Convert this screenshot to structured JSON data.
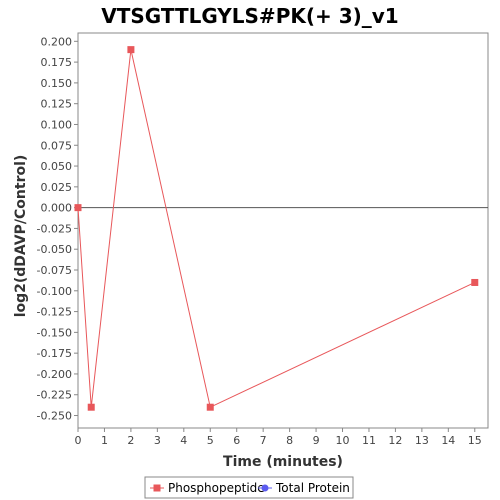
{
  "chart_data": {
    "type": "line",
    "title": "VTSGTTLGYLS#PK(+ 3)_v1",
    "xlabel": "Time (minutes)",
    "ylabel": "log2(dDAVP/Control)",
    "xlim": [
      0,
      15.5
    ],
    "ylim": [
      -0.265,
      0.21
    ],
    "xticks": [
      0,
      1,
      2,
      3,
      4,
      5,
      6,
      7,
      8,
      9,
      10,
      11,
      12,
      13,
      14,
      15
    ],
    "yticks": [
      0.2,
      0.175,
      0.15,
      0.125,
      0.1,
      0.075,
      0.05,
      0.025,
      0.0,
      -0.025,
      -0.05,
      -0.075,
      -0.1,
      -0.125,
      -0.15,
      -0.175,
      -0.2,
      -0.225,
      -0.25
    ],
    "ytick_labels": [
      "0.200",
      "0.175",
      "0.150",
      "0.125",
      "0.100",
      "0.075",
      "0.050",
      "0.025",
      "0.000",
      "-0.025",
      "-0.050",
      "-0.075",
      "-0.100",
      "-0.125",
      "-0.150",
      "-0.175",
      "-0.200",
      "-0.225",
      "-0.250"
    ],
    "zero_line": true,
    "grid": false,
    "legend_position": "bottom",
    "series": [
      {
        "name": "Phosphopeptide",
        "color": "#e8575a",
        "marker": "square",
        "x": [
          0,
          0.5,
          2,
          5,
          15
        ],
        "y": [
          0.0,
          -0.24,
          0.19,
          -0.24,
          -0.09
        ]
      },
      {
        "name": "Total Protein",
        "color": "#5b5bf0",
        "marker": "circle",
        "x": [],
        "y": []
      }
    ]
  }
}
